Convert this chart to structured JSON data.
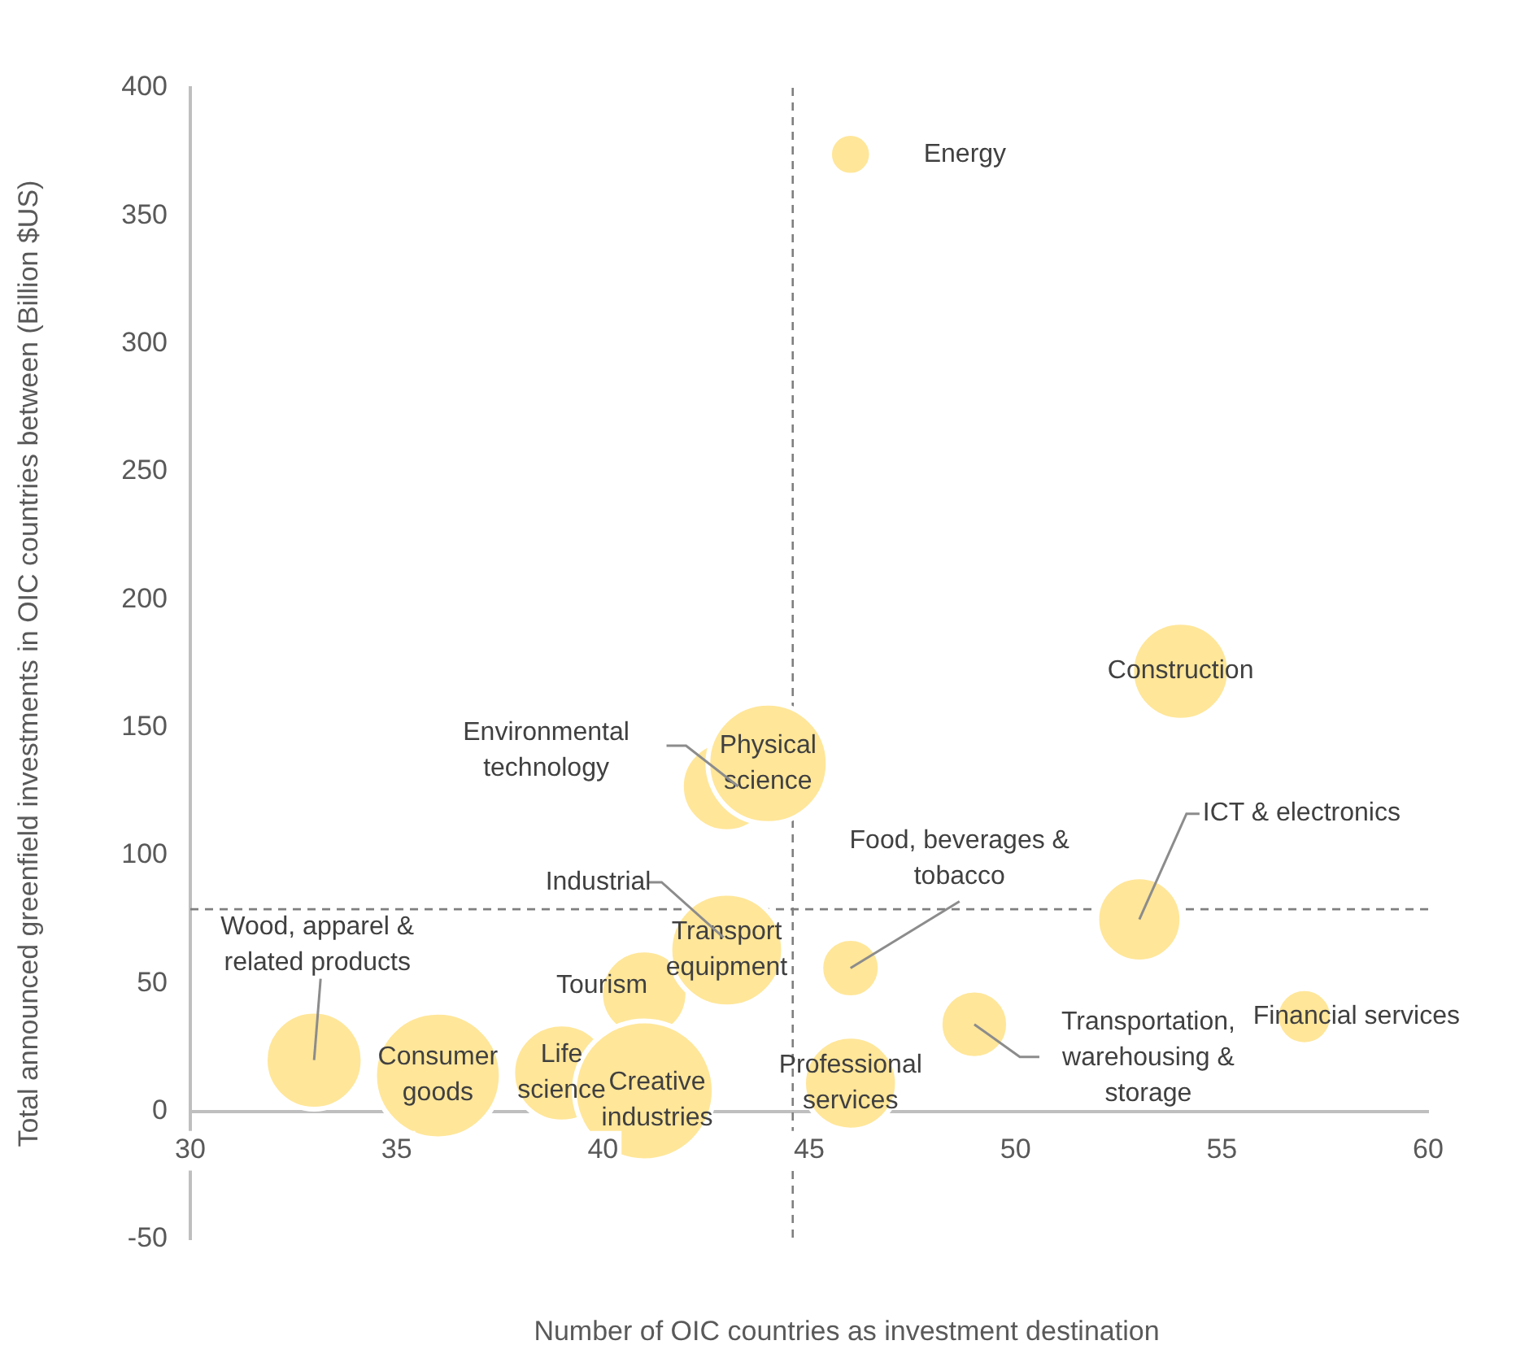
{
  "chart_data": {
    "type": "bubble",
    "xlabel": "Number of OIC countries as investment destination",
    "ylabel": "Total announced greenfield investments in OIC countries between (Billion $US)",
    "xlim": [
      30,
      60
    ],
    "xticks": [
      30,
      35,
      40,
      45,
      50,
      55,
      60
    ],
    "ylim": [
      -50,
      400
    ],
    "yticks": [
      -50,
      0,
      50,
      100,
      150,
      200,
      250,
      300,
      350,
      400
    ],
    "grid": false,
    "legend": false,
    "series": [
      {
        "name": "Energy",
        "color": "#ffe699",
        "x": [
          46
        ],
        "values": [
          374
        ],
        "sizes": [
          0.09
        ]
      },
      {
        "name": "Construction",
        "color": "#ffe699",
        "x": [
          54
        ],
        "values": [
          172
        ],
        "sizes": [
          0.49
        ]
      },
      {
        "name": "Physical science",
        "color": "#ffe699",
        "x": [
          44
        ],
        "values": [
          136
        ],
        "sizes": [
          0.74
        ]
      },
      {
        "name": "Environmental technology",
        "color": "#ffe699",
        "x": [
          43
        ],
        "values": [
          127
        ],
        "sizes": [
          0.42
        ]
      },
      {
        "name": "Transport equipment",
        "color": "#ffe699",
        "x": [
          43
        ],
        "values": [
          63
        ],
        "sizes": [
          0.66
        ]
      },
      {
        "name": "Food, beverages & tobacco",
        "color": "#ffe699",
        "x": [
          46
        ],
        "values": [
          56
        ],
        "sizes": [
          0.18
        ]
      },
      {
        "name": "ICT & electronics",
        "color": "#ffe699",
        "x": [
          53
        ],
        "values": [
          75
        ],
        "sizes": [
          0.37
        ]
      },
      {
        "name": "Financial services",
        "color": "#ffe699",
        "x": [
          57
        ],
        "values": [
          37
        ],
        "sizes": [
          0.16
        ]
      },
      {
        "name": "Transportation, warehousing & storage",
        "color": "#ffe699",
        "x": [
          49
        ],
        "values": [
          34
        ],
        "sizes": [
          0.24
        ]
      },
      {
        "name": "Professional services",
        "color": "#ffe699",
        "x": [
          46
        ],
        "values": [
          11
        ],
        "sizes": [
          0.45
        ]
      },
      {
        "name": "Creative industries",
        "color": "#ffe699",
        "x": [
          41
        ],
        "values": [
          8
        ],
        "sizes": [
          1
        ]
      },
      {
        "name": "Tourism",
        "color": "#ffe699",
        "x": [
          41
        ],
        "values": [
          46
        ],
        "sizes": [
          0.39
        ]
      },
      {
        "name": "Life science",
        "color": "#ffe699",
        "x": [
          39
        ],
        "values": [
          15
        ],
        "sizes": [
          0.49
        ]
      },
      {
        "name": "Consumer goods",
        "color": "#ffe699",
        "x": [
          36
        ],
        "values": [
          14
        ],
        "sizes": [
          0.82
        ]
      },
      {
        "name": "Wood, apparel & related products",
        "color": "#ffe699",
        "x": [
          33
        ],
        "values": [
          20
        ],
        "sizes": [
          0.49
        ]
      }
    ],
    "ref_lines": [
      {
        "axis": "x",
        "value": 44.6,
        "color": "#7f7f7f",
        "line_style": "dashed"
      },
      {
        "axis": "y",
        "value": 79,
        "color": "#7f7f7f",
        "line_style": "dashed"
      }
    ],
    "annotations": [
      {
        "text": "Industrial",
        "x": 43,
        "y": 66
      }
    ]
  }
}
